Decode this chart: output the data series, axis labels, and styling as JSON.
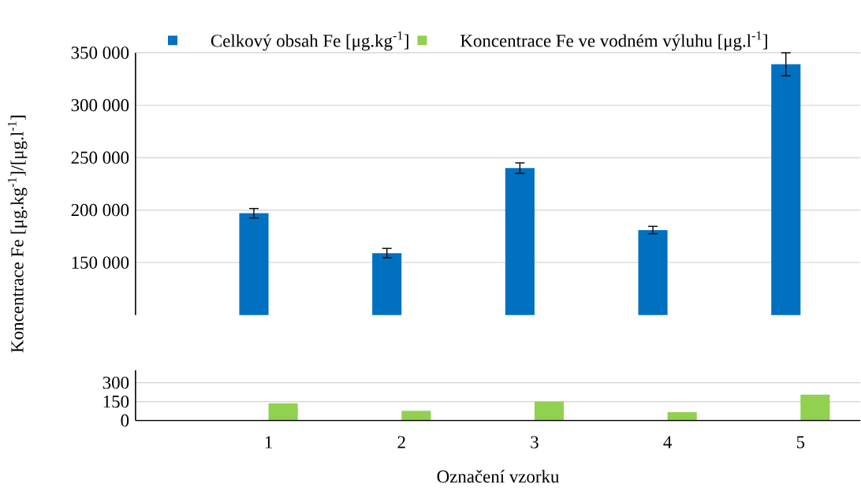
{
  "chart_data": [
    {
      "type": "bar",
      "ylabel": "Koncentrace Fe [μg.kg$^{-1}$]/[μg.l$^{-1}$]",
      "categories": [
        null,
        "1",
        "2",
        "3",
        "4",
        "5"
      ],
      "series": [
        {
          "name": "Celkový obsah Fe [μg.kg$^{-1}$]",
          "color": "#0070c0",
          "values": [
            null,
            197000,
            159000,
            240000,
            181000,
            339000
          ],
          "errors": [
            null,
            4500,
            4500,
            5000,
            3500,
            11000
          ]
        },
        {
          "name": "Koncentrace Fe ve vodném výluhu [μg.l$^{-1}$]",
          "color": "#92d050",
          "values": [
            null,
            null,
            null,
            null,
            null,
            null
          ]
        }
      ],
      "ylim": [
        100000,
        350000
      ],
      "yticks": [
        {
          "value": 150000,
          "label": "150 000"
        },
        {
          "value": 200000,
          "label": "200 000"
        },
        {
          "value": 250000,
          "label": "250 000"
        },
        {
          "value": 300000,
          "label": "300 000"
        },
        {
          "value": 350000,
          "label": "350 000"
        }
      ],
      "grid": "y",
      "legend": "top",
      "tick_labels": "y"
    },
    {
      "type": "bar",
      "xlabel": "Označení vzorku",
      "categories": [
        null,
        "1",
        "2",
        "3",
        "4",
        "5"
      ],
      "series": [
        {
          "color": "#0070c0",
          "values": [
            null,
            null,
            null,
            null,
            null,
            null
          ]
        },
        {
          "color": "#92d050",
          "values": [
            null,
            136,
            77,
            150,
            67,
            206
          ]
        }
      ],
      "ylim": [
        0,
        400
      ],
      "yticks": [
        0,
        150,
        300
      ],
      "grid": "y"
    }
  ]
}
